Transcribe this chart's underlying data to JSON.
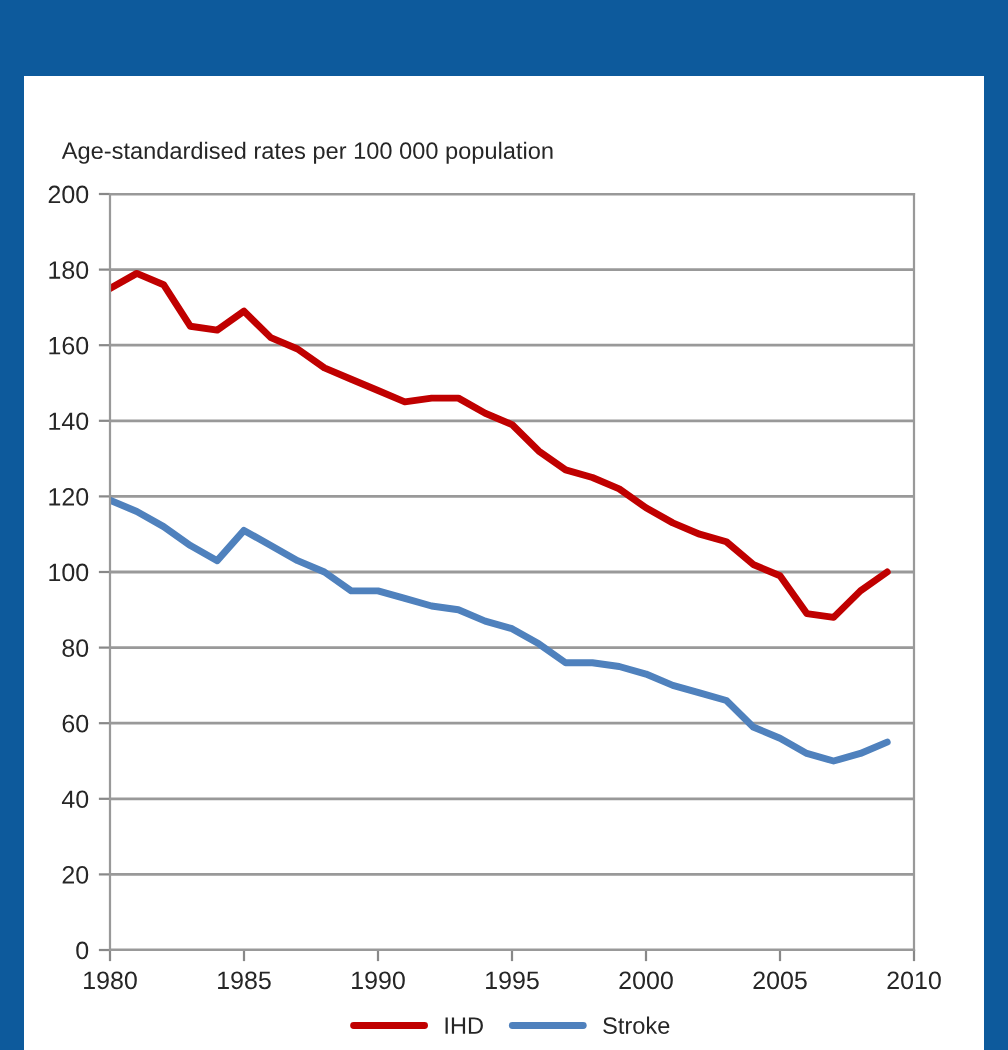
{
  "chart_data": {
    "type": "line",
    "ylabel": "Age-standardised rates per 100 000 population",
    "x": [
      1980,
      1981,
      1982,
      1983,
      1984,
      1985,
      1986,
      1987,
      1988,
      1989,
      1990,
      1991,
      1992,
      1993,
      1994,
      1995,
      1996,
      1997,
      1998,
      1999,
      2000,
      2001,
      2002,
      2003,
      2004,
      2005,
      2006,
      2007,
      2008,
      2009
    ],
    "series": [
      {
        "name": "IHD",
        "color": "#c00000",
        "values": [
          175,
          179,
          176,
          165,
          164,
          169,
          162,
          159,
          154,
          151,
          148,
          145,
          146,
          146,
          142,
          139,
          132,
          127,
          125,
          122,
          117,
          113,
          110,
          108,
          102,
          99,
          89,
          88,
          95,
          100
        ]
      },
      {
        "name": "Stroke",
        "color": "#4f81bd",
        "values": [
          119,
          116,
          112,
          107,
          103,
          111,
          107,
          103,
          100,
          95,
          95,
          93,
          91,
          90,
          87,
          85,
          81,
          76,
          76,
          75,
          73,
          70,
          68,
          66,
          59,
          56,
          52,
          50,
          52,
          55
        ]
      }
    ],
    "xlim": [
      1980,
      2010
    ],
    "xticks": [
      1980,
      1985,
      1990,
      1995,
      2000,
      2005,
      2010
    ],
    "ylim": [
      0,
      200
    ],
    "yticks": [
      0,
      20,
      40,
      60,
      80,
      100,
      120,
      140,
      160,
      180,
      200
    ],
    "grid": "y",
    "legend": "bottom",
    "marker": "none",
    "line_style": "solid"
  }
}
